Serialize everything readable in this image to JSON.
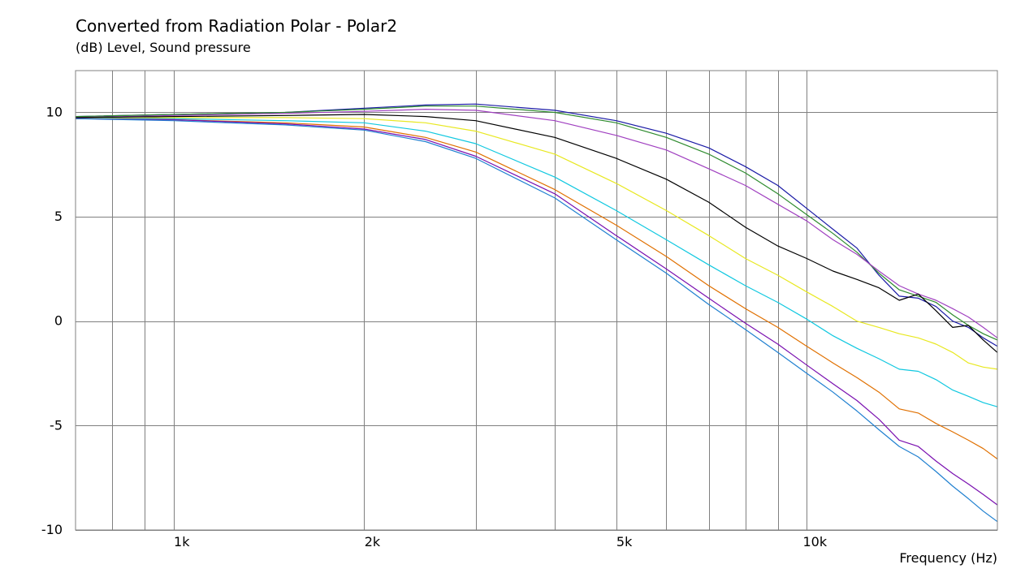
{
  "chart_data": {
    "type": "line",
    "title": "Converted from Radiation Polar - Polar2",
    "ylabel": "(dB)  Level, Sound pressure",
    "xlabel": "Frequency  (Hz)",
    "xscale": "log",
    "xlim": [
      700,
      20000
    ],
    "ylim": [
      -10,
      12
    ],
    "grid": true,
    "x_ticks": [
      {
        "value": 1000,
        "label": "1k"
      },
      {
        "value": 2000,
        "label": "2k"
      },
      {
        "value": 5000,
        "label": "5k"
      },
      {
        "value": 10000,
        "label": "10k"
      }
    ],
    "y_ticks": [
      {
        "value": 10,
        "label": "10"
      },
      {
        "value": 5,
        "label": "5"
      },
      {
        "value": 0,
        "label": "0"
      },
      {
        "value": -5,
        "label": "-5"
      },
      {
        "value": -10,
        "label": "-10"
      }
    ],
    "series": [
      {
        "color": "#1a1aa6",
        "x": [
          700,
          1000,
          1500,
          2000,
          2500,
          3000,
          4000,
          5000,
          6000,
          7000,
          8000,
          9000,
          10000,
          11000,
          12000,
          13000,
          14000,
          15000,
          16000,
          17000,
          18000,
          19000,
          20000
        ],
        "y": [
          9.8,
          9.9,
          10.0,
          10.2,
          10.35,
          10.4,
          10.1,
          9.6,
          9.0,
          8.3,
          7.4,
          6.5,
          5.4,
          4.4,
          3.5,
          2.2,
          1.2,
          1.1,
          0.7,
          0.0,
          -0.3,
          -0.8,
          -1.2
        ]
      },
      {
        "color": "#2e8b2e",
        "x": [
          700,
          1000,
          1500,
          2000,
          2500,
          3000,
          4000,
          5000,
          6000,
          7000,
          8000,
          9000,
          10000,
          11000,
          12000,
          13000,
          14000,
          15000,
          16000,
          17000,
          18000,
          19000,
          20000
        ],
        "y": [
          9.8,
          9.9,
          10.0,
          10.15,
          10.3,
          10.3,
          10.0,
          9.5,
          8.8,
          8.0,
          7.1,
          6.1,
          5.1,
          4.2,
          3.3,
          2.3,
          1.5,
          1.2,
          0.9,
          0.3,
          -0.2,
          -0.6,
          -0.9
        ]
      },
      {
        "color": "#a040c0",
        "x": [
          700,
          1000,
          1500,
          2000,
          2500,
          3000,
          4000,
          5000,
          6000,
          7000,
          8000,
          9000,
          10000,
          11000,
          12000,
          13000,
          14000,
          15000,
          16000,
          17000,
          18000,
          19000,
          20000
        ],
        "y": [
          9.75,
          9.85,
          9.95,
          10.05,
          10.15,
          10.1,
          9.6,
          8.9,
          8.2,
          7.3,
          6.5,
          5.6,
          4.8,
          3.9,
          3.2,
          2.4,
          1.7,
          1.3,
          1.0,
          0.6,
          0.2,
          -0.3,
          -0.8
        ]
      },
      {
        "color": "#000000",
        "x": [
          700,
          1000,
          1500,
          2000,
          2500,
          3000,
          4000,
          5000,
          6000,
          7000,
          8000,
          9000,
          10000,
          11000,
          12000,
          13000,
          14000,
          15000,
          16000,
          17000,
          18000,
          19000,
          20000
        ],
        "y": [
          9.75,
          9.8,
          9.85,
          9.9,
          9.8,
          9.6,
          8.8,
          7.8,
          6.8,
          5.7,
          4.5,
          3.6,
          3.0,
          2.4,
          2.0,
          1.6,
          1.0,
          1.3,
          0.5,
          -0.3,
          -0.2,
          -0.9,
          -1.5
        ]
      },
      {
        "color": "#e8e820",
        "x": [
          700,
          1000,
          1500,
          2000,
          2500,
          3000,
          4000,
          5000,
          6000,
          7000,
          8000,
          9000,
          10000,
          11000,
          12000,
          13000,
          14000,
          15000,
          16000,
          17000,
          18000,
          19000,
          20000
        ],
        "y": [
          9.7,
          9.75,
          9.75,
          9.7,
          9.5,
          9.1,
          8.0,
          6.6,
          5.3,
          4.1,
          3.0,
          2.2,
          1.4,
          0.7,
          0.0,
          -0.3,
          -0.6,
          -0.8,
          -1.1,
          -1.5,
          -2.0,
          -2.2,
          -2.3
        ]
      },
      {
        "color": "#10c8e0",
        "x": [
          700,
          1000,
          1500,
          2000,
          2500,
          3000,
          4000,
          5000,
          6000,
          7000,
          8000,
          9000,
          10000,
          11000,
          12000,
          13000,
          14000,
          15000,
          16000,
          17000,
          18000,
          19000,
          20000
        ],
        "y": [
          9.7,
          9.7,
          9.6,
          9.5,
          9.1,
          8.5,
          6.9,
          5.3,
          3.9,
          2.7,
          1.7,
          0.9,
          0.1,
          -0.7,
          -1.3,
          -1.8,
          -2.3,
          -2.4,
          -2.8,
          -3.3,
          -3.6,
          -3.9,
          -4.1
        ]
      },
      {
        "color": "#e07000",
        "x": [
          700,
          1000,
          1500,
          2000,
          2500,
          3000,
          4000,
          5000,
          6000,
          7000,
          8000,
          9000,
          10000,
          11000,
          12000,
          13000,
          14000,
          15000,
          16000,
          17000,
          18000,
          19000,
          20000
        ],
        "y": [
          9.7,
          9.65,
          9.5,
          9.3,
          8.8,
          8.1,
          6.3,
          4.6,
          3.1,
          1.7,
          0.6,
          -0.3,
          -1.2,
          -2.0,
          -2.7,
          -3.4,
          -4.2,
          -4.4,
          -4.9,
          -5.3,
          -5.7,
          -6.1,
          -6.6
        ]
      },
      {
        "color": "#7a10b0",
        "x": [
          700,
          1000,
          1500,
          2000,
          2500,
          3000,
          4000,
          5000,
          6000,
          7000,
          8000,
          9000,
          10000,
          11000,
          12000,
          13000,
          14000,
          15000,
          16000,
          17000,
          18000,
          19000,
          20000
        ],
        "y": [
          9.7,
          9.65,
          9.45,
          9.2,
          8.7,
          7.9,
          6.1,
          4.1,
          2.5,
          1.1,
          -0.1,
          -1.1,
          -2.1,
          -3.0,
          -3.8,
          -4.7,
          -5.7,
          -6.0,
          -6.7,
          -7.3,
          -7.8,
          -8.3,
          -8.8
        ]
      },
      {
        "color": "#2080d0",
        "x": [
          700,
          1000,
          1500,
          2000,
          2500,
          3000,
          4000,
          5000,
          6000,
          7000,
          8000,
          9000,
          10000,
          11000,
          12000,
          13000,
          14000,
          15000,
          16000,
          17000,
          18000,
          19000,
          20000
        ],
        "y": [
          9.7,
          9.6,
          9.4,
          9.15,
          8.6,
          7.8,
          5.9,
          3.9,
          2.3,
          0.8,
          -0.4,
          -1.5,
          -2.5,
          -3.4,
          -4.3,
          -5.2,
          -6.0,
          -6.5,
          -7.2,
          -7.9,
          -8.5,
          -9.1,
          -9.6
        ]
      }
    ]
  }
}
